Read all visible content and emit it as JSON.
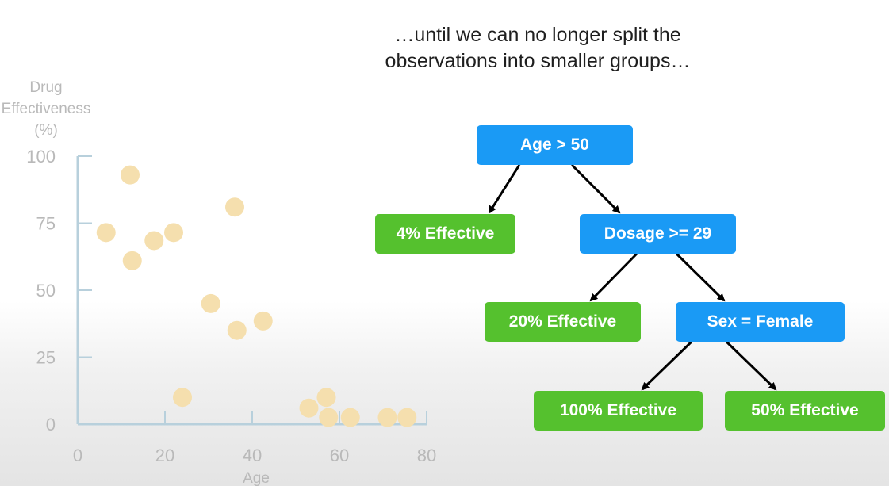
{
  "caption": {
    "line1": "…until we can no longer split the",
    "line2": "observations into smaller groups…"
  },
  "colors": {
    "internal_node": "#1a9af5",
    "leaf_node": "#55c12e",
    "arrow": "#000000",
    "axis": "#b8d0dc",
    "point": "#f5dfae",
    "axis_text": "#b9b9b9"
  },
  "tree": {
    "root": "Age > 50",
    "root_leaf": "4% Effective",
    "dosage": "Dosage >= 29",
    "dosage_leaf": "20% Effective",
    "sex": "Sex = Female",
    "sex_leaf_true": "100% Effective",
    "sex_leaf_false": "50% Effective"
  },
  "chart_data": {
    "type": "scatter",
    "ylabel": [
      "Drug",
      "Effectiveness",
      "(%)"
    ],
    "xlabel": "Age",
    "xlim": [
      0,
      80
    ],
    "ylim": [
      0,
      100
    ],
    "x_ticks": [
      0,
      20,
      40,
      60,
      80
    ],
    "y_ticks": [
      0,
      25,
      50,
      75,
      100
    ],
    "points": [
      {
        "x": 6.5,
        "y": 71.5
      },
      {
        "x": 12,
        "y": 93
      },
      {
        "x": 12.5,
        "y": 61
      },
      {
        "x": 17.5,
        "y": 68.5
      },
      {
        "x": 22,
        "y": 71.5
      },
      {
        "x": 24,
        "y": 10
      },
      {
        "x": 30.5,
        "y": 45
      },
      {
        "x": 36,
        "y": 81
      },
      {
        "x": 36.5,
        "y": 35
      },
      {
        "x": 42.5,
        "y": 38.5
      },
      {
        "x": 53,
        "y": 6
      },
      {
        "x": 57,
        "y": 10
      },
      {
        "x": 57.5,
        "y": 2.5
      },
      {
        "x": 62.5,
        "y": 2.5
      },
      {
        "x": 71,
        "y": 2.5
      },
      {
        "x": 75.5,
        "y": 2.5
      }
    ]
  }
}
